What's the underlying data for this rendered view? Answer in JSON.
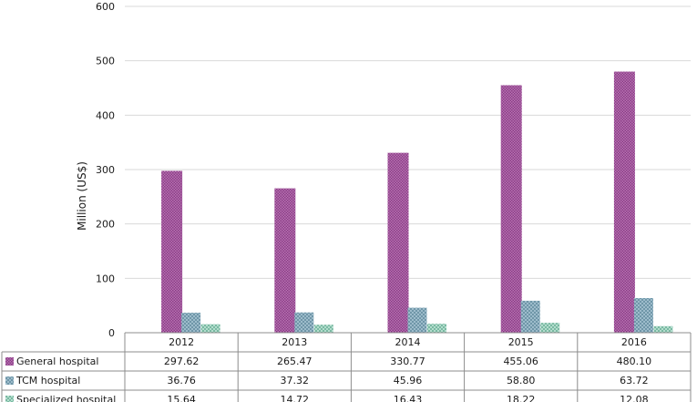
{
  "chart_data": {
    "type": "bar",
    "ylabel": "Million (US$)",
    "ylim": [
      0,
      600
    ],
    "yticks": [
      "0",
      "100",
      "200",
      "300",
      "400",
      "500",
      "600"
    ],
    "grid": true,
    "legend_placement": "data-table-left",
    "categories": [
      "2012",
      "2013",
      "2014",
      "2015",
      "2016"
    ],
    "series": [
      {
        "name": "General hospital",
        "values": [
          297.62,
          265.47,
          330.77,
          455.06,
          480.1
        ],
        "labels": [
          "297.62",
          "265.47",
          "330.77",
          "455.06",
          "480.10"
        ],
        "color": "#a0529b"
      },
      {
        "name": "TCM hospital",
        "values": [
          36.76,
          37.32,
          45.96,
          58.8,
          63.72
        ],
        "labels": [
          "36.76",
          "37.32",
          "45.96",
          "58.80",
          "63.72"
        ],
        "color": "#7fa6b8"
      },
      {
        "name": "Specialized hospital",
        "values": [
          15.64,
          14.72,
          16.43,
          18.22,
          12.08
        ],
        "labels": [
          "15.64",
          "14.72",
          "16.43",
          "18.22",
          "12.08"
        ],
        "color": "#8fc9b5"
      }
    ]
  }
}
